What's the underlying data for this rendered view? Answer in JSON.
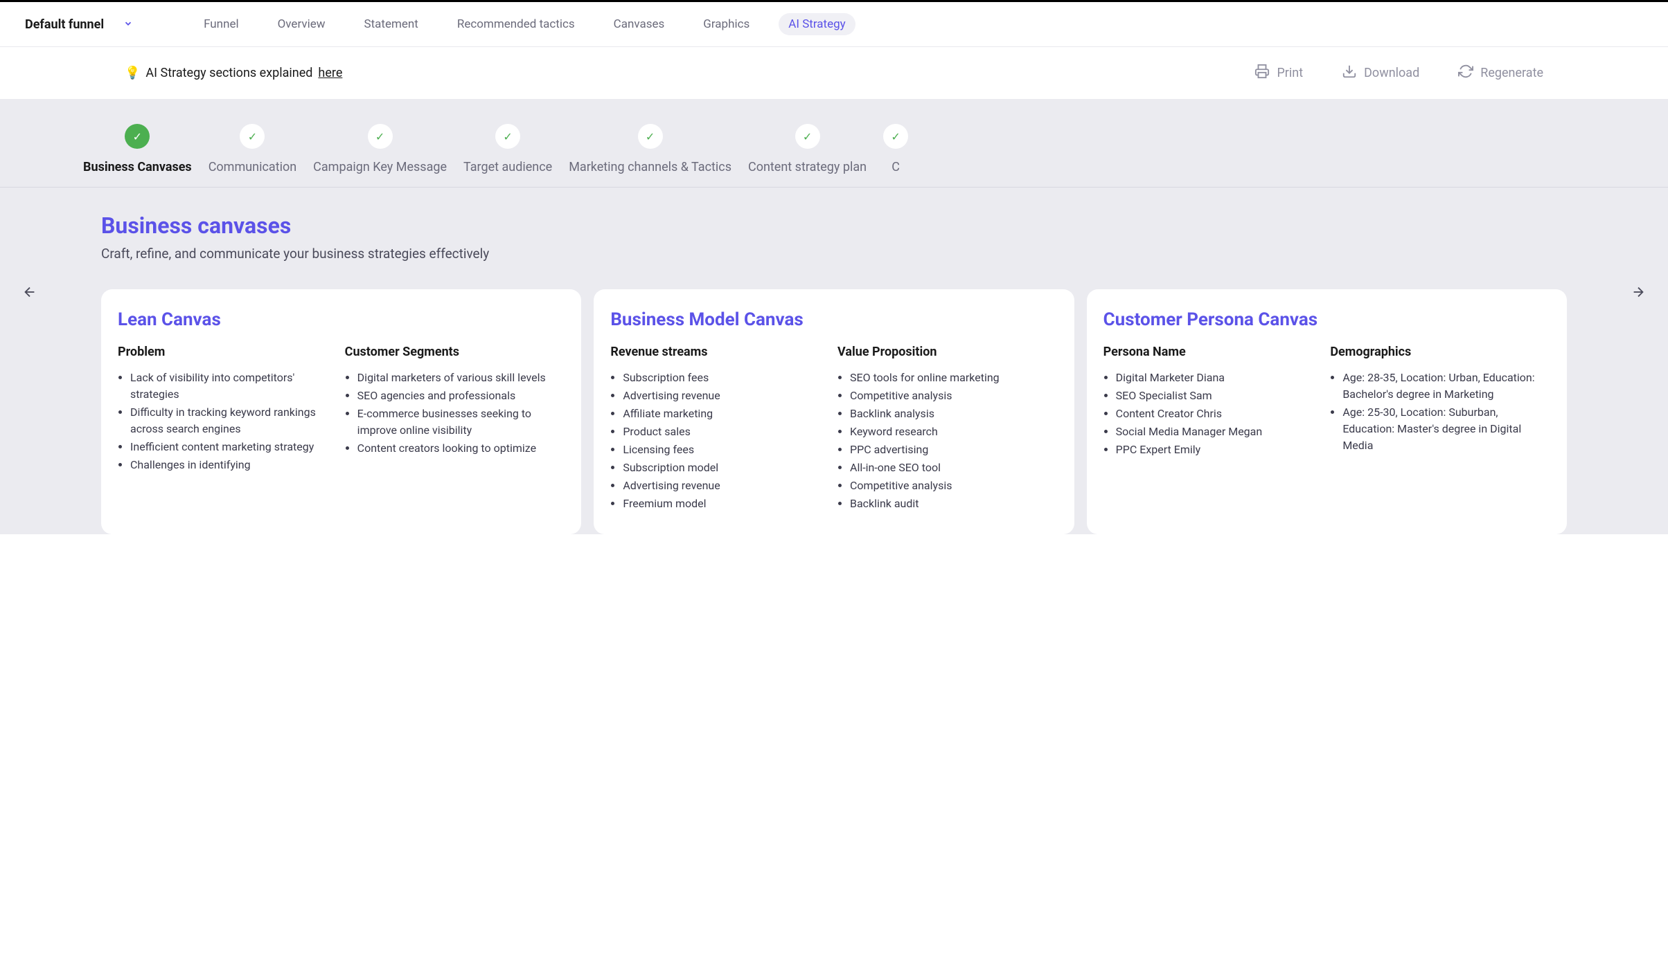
{
  "funnel_name": "Default funnel",
  "nav_tabs": [
    "Funnel",
    "Overview",
    "Statement",
    "Recommended tactics",
    "Canvases",
    "Graphics",
    "AI Strategy"
  ],
  "active_tab_index": 6,
  "info_text": "AI Strategy sections explained ",
  "info_link": "here",
  "actions": {
    "print": "Print",
    "download": "Download",
    "regenerate": "Regenerate"
  },
  "steps": [
    {
      "label": "Business Canvases",
      "active": true
    },
    {
      "label": "Communication",
      "active": false
    },
    {
      "label": "Campaign Key Message",
      "active": false
    },
    {
      "label": "Target audience",
      "active": false
    },
    {
      "label": "Marketing channels & Tactics",
      "active": false
    },
    {
      "label": "Content strategy plan",
      "active": false
    },
    {
      "label": "C",
      "active": false
    }
  ],
  "section": {
    "title": "Business canvases",
    "subtitle": "Craft, refine, and communicate your business strategies effectively"
  },
  "cards": [
    {
      "title": "Lean Canvas",
      "columns": [
        {
          "heading": "Problem",
          "items": [
            "Lack of visibility into competitors' strategies",
            "Difficulty in tracking keyword rankings across search engines",
            "Inefficient content marketing strategy",
            "Challenges in identifying"
          ]
        },
        {
          "heading": "Customer Segments",
          "items": [
            "Digital marketers of various skill levels",
            "SEO agencies and professionals",
            "E-commerce businesses seeking to improve online visibility",
            "Content creators looking to optimize"
          ]
        }
      ]
    },
    {
      "title": "Business Model Canvas",
      "columns": [
        {
          "heading": "Revenue streams",
          "items": [
            "Subscription fees",
            "Advertising revenue",
            "Affiliate marketing",
            "Product sales",
            "Licensing fees",
            "Subscription model",
            "Advertising revenue",
            "Freemium model"
          ]
        },
        {
          "heading": "Value Proposition",
          "items": [
            "SEO tools for online marketing",
            "Competitive analysis",
            "Backlink analysis",
            "Keyword research",
            "PPC advertising",
            "All-in-one SEO tool",
            "Competitive analysis",
            "Backlink audit"
          ]
        }
      ]
    },
    {
      "title": "Customer Persona Canvas",
      "columns": [
        {
          "heading": "Persona Name",
          "items": [
            "Digital Marketer Diana",
            "SEO Specialist Sam",
            "Content Creator Chris",
            "Social Media Manager Megan",
            "PPC Expert Emily"
          ]
        },
        {
          "heading": "Demographics",
          "items": [
            "Age: 28-35, Location: Urban, Education: Bachelor's degree in Marketing",
            "Age: 25-30, Location: Suburban, Education: Master's degree in Digital Media"
          ]
        }
      ]
    }
  ],
  "colors": {
    "primary": "#5b52e8",
    "success": "#4caf50",
    "bg_gray": "#ebebf0",
    "text_muted": "#6b6b7b"
  }
}
